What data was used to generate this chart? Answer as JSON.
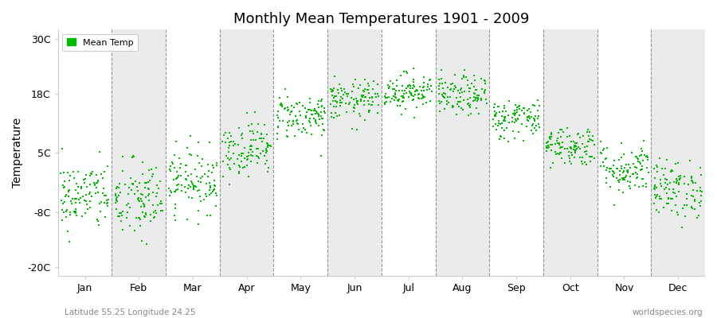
{
  "title": "Monthly Mean Temperatures 1901 - 2009",
  "ylabel": "Temperature",
  "xlabel": "",
  "subtitle_left": "Latitude 55.25 Longitude 24.25",
  "subtitle_right": "worldspecies.org",
  "yticks": [
    -20,
    -8,
    5,
    18,
    30
  ],
  "ytick_labels": [
    "-20C",
    "-8C",
    "5C",
    "18C",
    "30C"
  ],
  "ylim": [
    -22,
    32
  ],
  "months": [
    "Jan",
    "Feb",
    "Mar",
    "Apr",
    "May",
    "Jun",
    "Jul",
    "Aug",
    "Sep",
    "Oct",
    "Nov",
    "Dec"
  ],
  "dot_color": "#00BB00",
  "dot_size": 3,
  "background_color": "#ffffff",
  "plot_bg_color": "#f2f2f2",
  "band_colors": [
    "#ffffff",
    "#ebebeb"
  ],
  "legend_label": "Mean Temp",
  "n_years": 109,
  "mean_temps": [
    -4.5,
    -5.5,
    -1.0,
    6.0,
    13.0,
    16.5,
    18.5,
    17.5,
    12.5,
    6.5,
    1.5,
    -3.0
  ],
  "std_temps": [
    3.8,
    4.5,
    3.5,
    3.0,
    2.5,
    2.2,
    2.0,
    2.2,
    2.2,
    2.2,
    2.8,
    3.2
  ]
}
